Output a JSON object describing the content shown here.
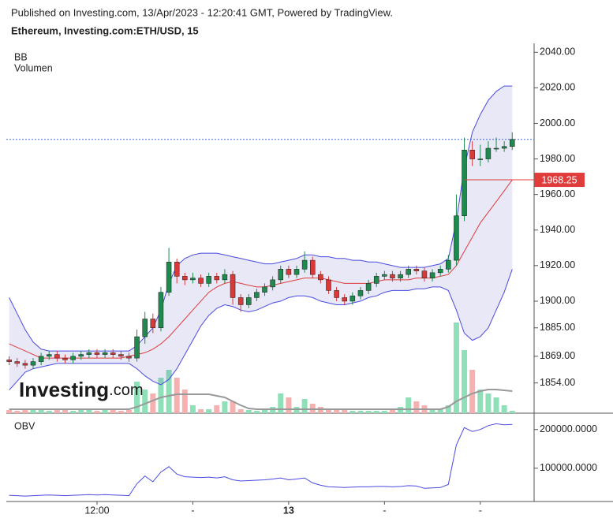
{
  "header": {
    "published": "Published on Investing.com, 13/Apr/2023 - 12:20:41 GMT, Powered by TradingView.",
    "symbol": "Ethereum, Investing.com:ETH/USD, 15"
  },
  "watermark": {
    "name": "Investing",
    "suffix": ".com"
  },
  "chart_data": {
    "type": "candlestick",
    "up_color": "#1e8a4e",
    "down_color": "#d83a3a",
    "xlim": [
      -0.36,
      65.74
    ],
    "xticks": [
      {
        "value": 11,
        "label": "12:00"
      },
      {
        "value": 23,
        "label": "-"
      },
      {
        "value": 35,
        "label": "13"
      },
      {
        "value": 47,
        "label": "-"
      },
      {
        "value": 59,
        "label": "-"
      }
    ],
    "ylim": [
      1837,
      2045
    ],
    "yticks": [
      {
        "value": 2040,
        "label": "2040.00"
      },
      {
        "value": 2020,
        "label": "2020.00"
      },
      {
        "value": 2000,
        "label": "2000.00"
      },
      {
        "value": 1980,
        "label": "1980.00"
      },
      {
        "value": 1960,
        "label": "1960.00"
      },
      {
        "value": 1940,
        "label": "1940.00"
      },
      {
        "value": 1920,
        "label": "1920.00"
      },
      {
        "value": 1900,
        "label": "1900.00"
      },
      {
        "value": 1885,
        "label": "1885.00"
      },
      {
        "value": 1869,
        "label": "1869.00"
      },
      {
        "value": 1854,
        "label": "1854.00"
      }
    ],
    "open": [
      1867,
      1866,
      1865,
      1864,
      1866,
      1869,
      1870,
      1868,
      1867,
      1869,
      1870,
      1871,
      1870,
      1871,
      1870,
      1869,
      1868,
      1880,
      1890,
      1885,
      1905,
      1922,
      1914,
      1912,
      1913,
      1910,
      1914,
      1912,
      1915,
      1902,
      1898,
      1902,
      1905,
      1908,
      1912,
      1918,
      1915,
      1918,
      1923,
      1915,
      1912,
      1906,
      1902,
      1900,
      1903,
      1906,
      1910,
      1914,
      1915,
      1913,
      1915,
      1918,
      1917,
      1913,
      1916,
      1918,
      1923,
      1948,
      1985,
      1980,
      1980,
      1986,
      1986,
      1987
    ],
    "high": [
      1869,
      1868,
      1867,
      1868,
      1871,
      1872,
      1872,
      1870,
      1871,
      1872,
      1873,
      1873,
      1873,
      1873,
      1872,
      1871,
      1884,
      1894,
      1893,
      1908,
      1930,
      1924,
      1916,
      1916,
      1915,
      1916,
      1916,
      1918,
      1917,
      1904,
      1904,
      1907,
      1910,
      1914,
      1920,
      1920,
      1920,
      1928,
      1925,
      1917,
      1914,
      1908,
      1904,
      1905,
      1908,
      1912,
      1916,
      1917,
      1917,
      1917,
      1920,
      1920,
      1919,
      1918,
      1920,
      1926,
      1960,
      1992,
      1990,
      1988,
      1990,
      1992,
      1990,
      1995
    ],
    "low": [
      1864,
      1863,
      1862,
      1862,
      1864,
      1867,
      1866,
      1865,
      1865,
      1867,
      1868,
      1868,
      1868,
      1868,
      1867,
      1866,
      1866,
      1876,
      1882,
      1883,
      1903,
      1910,
      1909,
      1910,
      1908,
      1908,
      1910,
      1910,
      1898,
      1894,
      1896,
      1900,
      1903,
      1906,
      1910,
      1913,
      1913,
      1916,
      1913,
      1910,
      1904,
      1900,
      1898,
      1898,
      1901,
      1904,
      1908,
      1912,
      1911,
      1911,
      1913,
      1915,
      1911,
      1911,
      1914,
      1916,
      1920,
      1945,
      1976,
      1976,
      1978,
      1984,
      1984,
      1985
    ],
    "close": [
      1866,
      1865,
      1864,
      1866,
      1869,
      1870,
      1868,
      1867,
      1869,
      1870,
      1871,
      1870,
      1871,
      1870,
      1869,
      1868,
      1880,
      1890,
      1885,
      1905,
      1922,
      1914,
      1912,
      1913,
      1910,
      1914,
      1912,
      1915,
      1902,
      1898,
      1902,
      1905,
      1908,
      1912,
      1918,
      1915,
      1918,
      1923,
      1915,
      1912,
      1906,
      1902,
      1900,
      1903,
      1906,
      1910,
      1914,
      1915,
      1913,
      1915,
      1918,
      1917,
      1913,
      1916,
      1918,
      1923,
      1948,
      1985,
      1980,
      1980,
      1986,
      1986,
      1987,
      1991
    ],
    "price_line_color": "#3f6ad8",
    "bb": {
      "name": "BB",
      "line_color": "#4a4ae0",
      "fill": "rgba(110,110,200,0.16)",
      "middle_color": "#e03c3c",
      "last_label": "1968.25",
      "upper": [
        1902,
        1893,
        1884,
        1877,
        1873,
        1872,
        1872,
        1872,
        1872,
        1872,
        1872,
        1872,
        1872,
        1872,
        1872,
        1872,
        1875,
        1880,
        1885,
        1895,
        1910,
        1920,
        1924,
        1926,
        1927,
        1927,
        1927,
        1926,
        1925,
        1924,
        1923,
        1922,
        1921,
        1921,
        1922,
        1923,
        1924,
        1926,
        1926,
        1925,
        1925,
        1924,
        1924,
        1923,
        1923,
        1922,
        1922,
        1921,
        1920,
        1919,
        1919,
        1919,
        1919,
        1920,
        1921,
        1924,
        1945,
        1975,
        1995,
        2005,
        2013,
        2018,
        2021,
        2021
      ],
      "middle": [
        1876,
        1874,
        1872,
        1870,
        1868,
        1868,
        1868,
        1868,
        1868,
        1868,
        1868,
        1868,
        1868,
        1868,
        1868,
        1869,
        1870,
        1871,
        1873,
        1876,
        1880,
        1885,
        1890,
        1895,
        1900,
        1905,
        1908,
        1910,
        1911,
        1910,
        1909,
        1908,
        1908,
        1909,
        1910,
        1911,
        1912,
        1913,
        1913,
        1913,
        1912,
        1911,
        1910,
        1910,
        1910,
        1910,
        1911,
        1912,
        1912,
        1912,
        1912,
        1913,
        1913,
        1913,
        1914,
        1915,
        1920,
        1928,
        1936,
        1944,
        1950,
        1956,
        1962,
        1968.25
      ],
      "lower": [
        1850,
        1855,
        1860,
        1862,
        1863,
        1864,
        1865,
        1865,
        1865,
        1865,
        1865,
        1865,
        1865,
        1865,
        1865,
        1865,
        1862,
        1858,
        1855,
        1853,
        1856,
        1862,
        1870,
        1878,
        1886,
        1892,
        1896,
        1898,
        1897,
        1895,
        1894,
        1895,
        1897,
        1899,
        1900,
        1902,
        1903,
        1903,
        1902,
        1900,
        1899,
        1898,
        1898,
        1899,
        1900,
        1902,
        1903,
        1905,
        1906,
        1906,
        1906,
        1907,
        1907,
        1908,
        1908,
        1906,
        1895,
        1882,
        1878,
        1880,
        1885,
        1895,
        1905,
        1918
      ]
    },
    "volume": {
      "name": "Volumen",
      "up_color": "#8fe0b8",
      "down_color": "#f5b0b0",
      "ma_color": "#999999",
      "ylim": [
        0,
        469
      ],
      "values": [
        4,
        3,
        5,
        6,
        4,
        3,
        5,
        4,
        3,
        4,
        5,
        3,
        4,
        5,
        3,
        4,
        40,
        30,
        25,
        45,
        55,
        45,
        30,
        10,
        5,
        5,
        10,
        15,
        15,
        5,
        4,
        3,
        4,
        8,
        25,
        20,
        8,
        18,
        12,
        8,
        6,
        5,
        4,
        3,
        3,
        3,
        3,
        3,
        4,
        8,
        20,
        15,
        10,
        5,
        5,
        10,
        115,
        80,
        55,
        30,
        25,
        20,
        10,
        3
      ],
      "ma": [
        5,
        5,
        5,
        5,
        5,
        5,
        5,
        5,
        5,
        5,
        5,
        5,
        5,
        5,
        5,
        5,
        8,
        12,
        16,
        20,
        22,
        24,
        24,
        24,
        24,
        24,
        22,
        20,
        15,
        10,
        6,
        5,
        5,
        5,
        5,
        5,
        5,
        5,
        5,
        5,
        5,
        5,
        5,
        5,
        5,
        5,
        5,
        5,
        5,
        5,
        5,
        5,
        5,
        5,
        5,
        8,
        15,
        20,
        25,
        28,
        30,
        30,
        29,
        28
      ]
    },
    "obv": {
      "title": "OBV",
      "color": "#4a4ae0",
      "ylim": [
        14000,
        230000
      ],
      "yticks": [
        {
          "value": 200000,
          "label": "200000.0000"
        },
        {
          "value": 100000,
          "label": "100000.0000"
        }
      ],
      "values": [
        30000,
        29000,
        28000,
        29000,
        30000,
        31000,
        30000,
        29000,
        30000,
        31000,
        32000,
        31000,
        32000,
        31000,
        30000,
        29000,
        60000,
        80000,
        65000,
        90000,
        104000,
        85000,
        78000,
        77000,
        76000,
        77000,
        75000,
        78000,
        70000,
        67000,
        68000,
        69000,
        70000,
        72000,
        75000,
        70000,
        72000,
        75000,
        62000,
        56000,
        52000,
        51000,
        50000,
        51000,
        52000,
        52000,
        53000,
        53000,
        52000,
        53000,
        55000,
        54000,
        48000,
        49000,
        50000,
        58000,
        160000,
        205000,
        195000,
        200000,
        210000,
        215000,
        212000,
        213000
      ]
    }
  }
}
